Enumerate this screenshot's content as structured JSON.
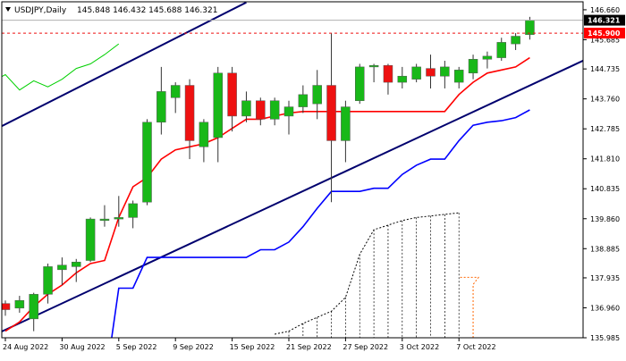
{
  "chart_data": {
    "type": "candlestick",
    "symbol": "USDJPY,Daily",
    "ohlc_header": "145.848 146.432 145.688 146.321",
    "y_ticks": [
      "146.660",
      "145.685",
      "144.735",
      "143.760",
      "142.785",
      "141.810",
      "140.835",
      "139.860",
      "138.885",
      "137.935",
      "136.960",
      "135.985"
    ],
    "ylim": [
      135.985,
      146.92
    ],
    "x_ticks": [
      {
        "i": 0,
        "label": "24 Aug 2022"
      },
      {
        "i": 4,
        "label": "30 Aug 2022"
      },
      {
        "i": 8,
        "label": "5 Sep 2022"
      },
      {
        "i": 12,
        "label": "9 Sep 2022"
      },
      {
        "i": 16,
        "label": "15 Sep 2022"
      },
      {
        "i": 20,
        "label": "21 Sep 2022"
      },
      {
        "i": 24,
        "label": "27 Sep 2022"
      },
      {
        "i": 28,
        "label": "3 Oct 2022"
      },
      {
        "i": 32,
        "label": "7 Oct 2022"
      }
    ],
    "current_price": {
      "value": 146.321,
      "label": "146.321",
      "color": "#000000"
    },
    "marked_level": {
      "value": 145.9,
      "label": "145.900",
      "color": "#ff0000"
    },
    "colors": {
      "bull": "#18b818",
      "bear": "#ee1111",
      "kijun": "#ff0000",
      "tenkan_dark": "#00008b",
      "chikou": "#00d000",
      "channel": "#00006e",
      "cloud_span_a": "#000000",
      "cloud_span_b": "#ff6600"
    },
    "candles": [
      {
        "o": 137.1,
        "h": 137.2,
        "l": 136.7,
        "c": 136.9
      },
      {
        "o": 136.95,
        "h": 137.35,
        "l": 136.8,
        "c": 137.2
      },
      {
        "o": 136.6,
        "h": 137.45,
        "l": 136.2,
        "c": 137.4
      },
      {
        "o": 137.4,
        "h": 138.4,
        "l": 137.1,
        "c": 138.3
      },
      {
        "o": 138.2,
        "h": 138.6,
        "l": 137.7,
        "c": 138.35
      },
      {
        "o": 138.3,
        "h": 138.55,
        "l": 137.8,
        "c": 138.45
      },
      {
        "o": 138.5,
        "h": 139.9,
        "l": 138.45,
        "c": 139.85
      },
      {
        "o": 139.8,
        "h": 140.3,
        "l": 139.6,
        "c": 139.85
      },
      {
        "o": 139.85,
        "h": 140.6,
        "l": 139.6,
        "c": 139.9
      },
      {
        "o": 139.9,
        "h": 140.45,
        "l": 139.55,
        "c": 140.35
      },
      {
        "o": 140.4,
        "h": 143.1,
        "l": 140.3,
        "c": 143.0
      },
      {
        "o": 143.0,
        "h": 144.8,
        "l": 142.6,
        "c": 144.0
      },
      {
        "o": 143.8,
        "h": 144.3,
        "l": 143.3,
        "c": 144.2
      },
      {
        "o": 144.2,
        "h": 144.4,
        "l": 141.8,
        "c": 142.4
      },
      {
        "o": 142.2,
        "h": 143.1,
        "l": 141.7,
        "c": 143.0
      },
      {
        "o": 142.5,
        "h": 144.8,
        "l": 141.7,
        "c": 144.6
      },
      {
        "o": 144.6,
        "h": 144.8,
        "l": 142.7,
        "c": 143.2
      },
      {
        "o": 143.2,
        "h": 144.0,
        "l": 143.0,
        "c": 143.7
      },
      {
        "o": 143.7,
        "h": 143.8,
        "l": 142.9,
        "c": 143.1
      },
      {
        "o": 143.1,
        "h": 143.8,
        "l": 142.9,
        "c": 143.7
      },
      {
        "o": 143.2,
        "h": 143.7,
        "l": 142.6,
        "c": 143.5
      },
      {
        "o": 143.5,
        "h": 144.2,
        "l": 143.3,
        "c": 143.9
      },
      {
        "o": 143.6,
        "h": 144.7,
        "l": 143.1,
        "c": 144.2
      },
      {
        "o": 144.2,
        "h": 145.9,
        "l": 140.4,
        "c": 142.4
      },
      {
        "o": 142.4,
        "h": 143.7,
        "l": 141.7,
        "c": 143.5
      },
      {
        "o": 143.7,
        "h": 144.9,
        "l": 143.6,
        "c": 144.8
      },
      {
        "o": 144.8,
        "h": 144.9,
        "l": 144.3,
        "c": 144.85
      },
      {
        "o": 144.85,
        "h": 144.9,
        "l": 143.9,
        "c": 144.3
      },
      {
        "o": 144.3,
        "h": 144.8,
        "l": 144.1,
        "c": 144.5
      },
      {
        "o": 144.4,
        "h": 144.9,
        "l": 144.3,
        "c": 144.8
      },
      {
        "o": 144.75,
        "h": 145.2,
        "l": 144.1,
        "c": 144.5
      },
      {
        "o": 144.5,
        "h": 145.0,
        "l": 144.1,
        "c": 144.8
      },
      {
        "o": 144.3,
        "h": 144.8,
        "l": 144.1,
        "c": 144.7
      },
      {
        "o": 144.6,
        "h": 145.2,
        "l": 144.4,
        "c": 145.05
      },
      {
        "o": 145.05,
        "h": 145.3,
        "l": 144.75,
        "c": 145.15
      },
      {
        "o": 145.1,
        "h": 145.75,
        "l": 145.0,
        "c": 145.6
      },
      {
        "o": 145.55,
        "h": 145.9,
        "l": 145.35,
        "c": 145.8
      },
      {
        "o": 145.85,
        "h": 146.43,
        "l": 145.69,
        "c": 146.32
      }
    ],
    "kijun": [
      136.2,
      136.5,
      137.0,
      137.4,
      137.7,
      138.1,
      138.4,
      138.5,
      139.9,
      140.9,
      141.2,
      141.8,
      142.1,
      142.2,
      142.3,
      142.5,
      142.8,
      143.1,
      143.1,
      143.2,
      143.3,
      143.35,
      143.35,
      143.35,
      143.35,
      143.35,
      143.35,
      143.35,
      143.35,
      143.35,
      143.35,
      143.35,
      143.9,
      144.3,
      144.6,
      144.7,
      144.8,
      145.1
    ],
    "tenkan": [
      null,
      null,
      null,
      null,
      null,
      null,
      null,
      null,
      137.6,
      137.6,
      138.6,
      138.6,
      138.6,
      138.6,
      138.6,
      138.6,
      138.6,
      138.6,
      138.85,
      138.85,
      139.1,
      139.6,
      140.2,
      140.75,
      140.75,
      140.75,
      140.85,
      140.85,
      141.3,
      141.6,
      141.8,
      141.8,
      142.4,
      142.9,
      143.0,
      143.05,
      143.15,
      143.4
    ],
    "chikou_points": [
      [
        -1,
        144.3
      ],
      [
        0,
        144.55
      ],
      [
        1,
        144.05
      ],
      [
        2,
        144.35
      ],
      [
        3,
        144.15
      ],
      [
        4,
        144.4
      ],
      [
        5,
        144.75
      ],
      [
        6,
        144.9
      ],
      [
        7,
        145.2
      ],
      [
        8,
        145.55
      ]
    ],
    "span_b_start": 33,
    "span_b_value": 137.95,
    "cloud_top": [
      [
        19,
        136.1
      ],
      [
        20,
        136.2
      ],
      [
        21,
        136.45
      ],
      [
        22,
        136.65
      ],
      [
        23,
        136.85
      ],
      [
        24,
        137.3
      ],
      [
        25,
        138.7
      ],
      [
        26,
        139.5
      ],
      [
        27,
        139.65
      ],
      [
        28,
        139.8
      ],
      [
        29,
        139.9
      ],
      [
        30,
        139.95
      ],
      [
        31,
        140.0
      ],
      [
        32,
        140.05
      ]
    ],
    "channel_lower": [
      [
        -3,
        135.6
      ],
      [
        44,
        145.7
      ]
    ],
    "channel_upper": [
      [
        -1,
        142.7
      ],
      [
        17,
        146.9
      ]
    ]
  }
}
